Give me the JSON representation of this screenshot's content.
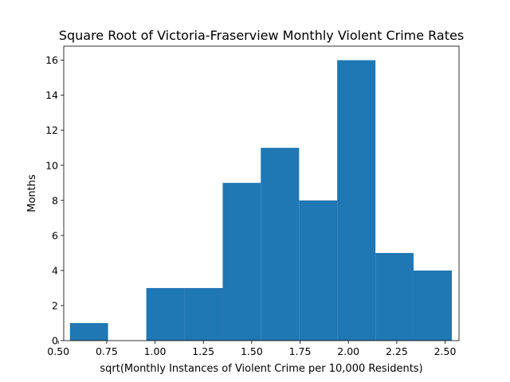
{
  "chart_data": {
    "type": "bar",
    "title": "Square Root of Victoria-Fraserview Monthly Violent Crime Rates",
    "xlabel": "sqrt(Monthly Instances of Violent Crime per 10,000 Residents)",
    "ylabel": "Months",
    "xlim": [
      0.528,
      2.572
    ],
    "ylim": [
      0,
      16.8
    ],
    "xticks": [
      0.5,
      0.75,
      1.0,
      1.25,
      1.5,
      1.75,
      2.0,
      2.25,
      2.5
    ],
    "xtick_labels": [
      "0.50",
      "0.75",
      "1.00",
      "1.25",
      "1.50",
      "1.75",
      "2.00",
      "2.25",
      "2.50"
    ],
    "yticks": [
      0,
      2,
      4,
      6,
      8,
      10,
      12,
      14,
      16
    ],
    "ytick_labels": [
      "0",
      "2",
      "4",
      "6",
      "8",
      "10",
      "12",
      "14",
      "16"
    ],
    "bar_color": "#1f77b4",
    "grid": false,
    "bins": [
      {
        "x0": 0.56,
        "x1": 0.757,
        "value": 1
      },
      {
        "x0": 0.757,
        "x1": 0.955,
        "value": 0
      },
      {
        "x0": 0.955,
        "x1": 1.152,
        "value": 3
      },
      {
        "x0": 1.152,
        "x1": 1.35,
        "value": 3
      },
      {
        "x0": 1.35,
        "x1": 1.547,
        "value": 9
      },
      {
        "x0": 1.547,
        "x1": 1.745,
        "value": 11
      },
      {
        "x0": 1.745,
        "x1": 1.942,
        "value": 8
      },
      {
        "x0": 1.942,
        "x1": 2.14,
        "value": 16
      },
      {
        "x0": 2.14,
        "x1": 2.337,
        "value": 5
      },
      {
        "x0": 2.337,
        "x1": 2.535,
        "value": 4
      }
    ]
  }
}
